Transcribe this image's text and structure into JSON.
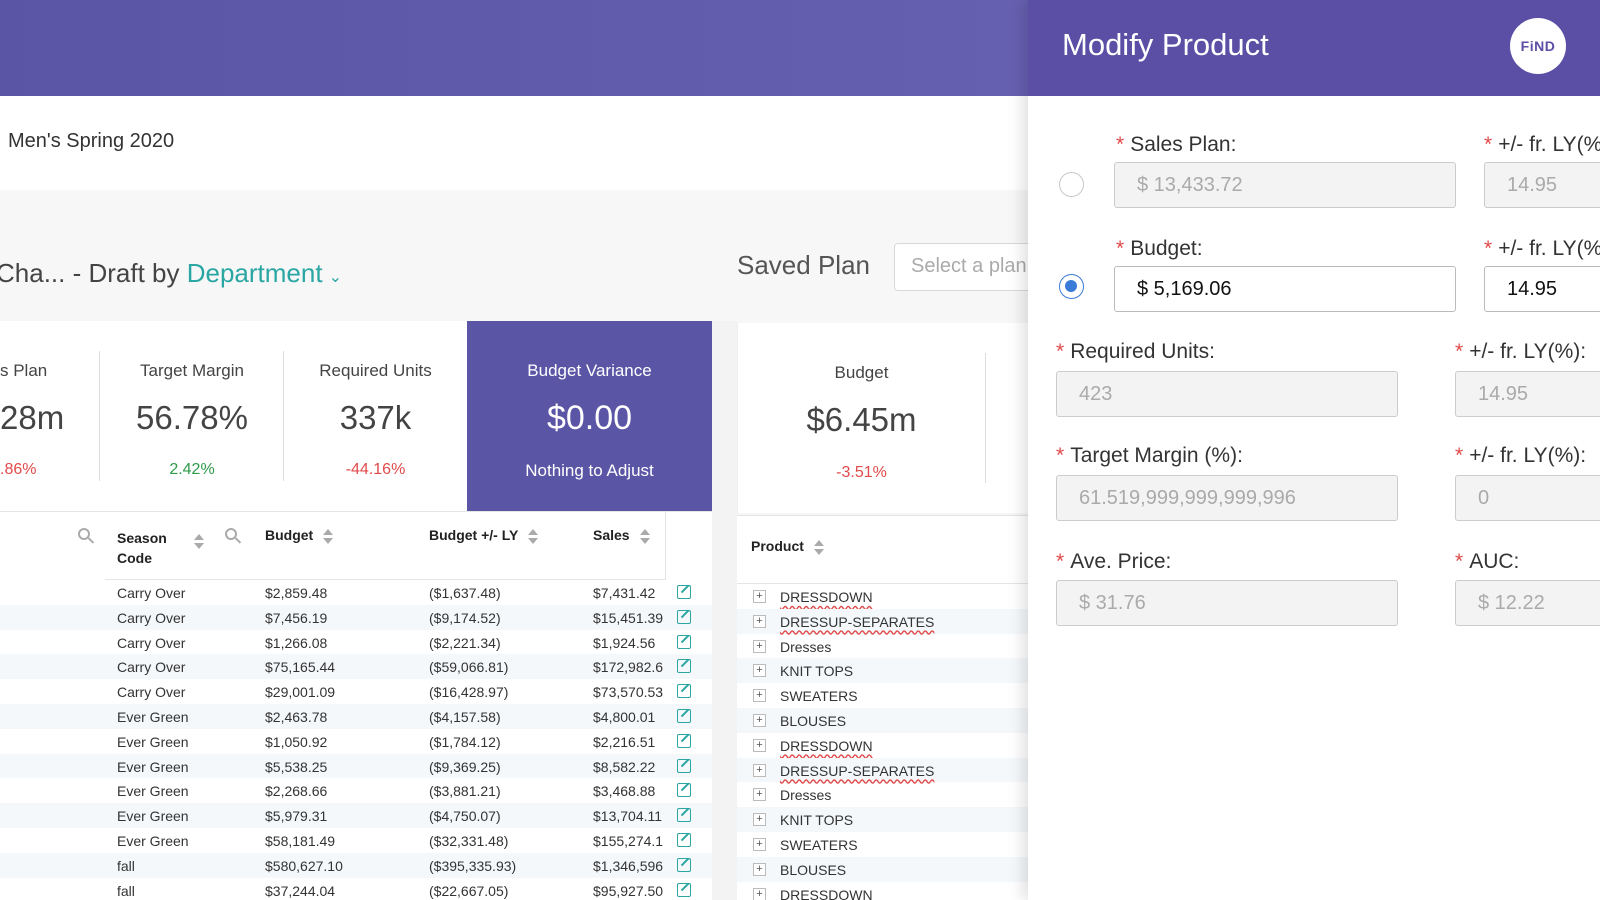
{
  "plan_name": "Men's Spring 2020",
  "draft": {
    "prefix": "Cha... - Draft by ",
    "group": "Department"
  },
  "saved_plan": {
    "label": "Saved Plan",
    "placeholder": "Select a plan"
  },
  "kpis": [
    {
      "label": "s Plan",
      "value": "28m",
      "change": ".86%"
    },
    {
      "label": "Target Margin",
      "value": "56.78%",
      "change": "2.42%"
    },
    {
      "label": "Required Units",
      "value": "337k",
      "change": "-44.16%"
    }
  ],
  "budget_variance": {
    "label": "Budget Variance",
    "value": "$0.00",
    "note": "Nothing to Adjust"
  },
  "kpi_budget": {
    "label": "Budget",
    "value": "$6.45m",
    "change": "-3.51%"
  },
  "left_table": {
    "headers": {
      "season": "Season Code",
      "budget": "Budget",
      "budget_ly": "Budget +/- LY",
      "sales": "Sales"
    },
    "rows": [
      {
        "season": "Carry Over",
        "budget": "$2,859.48",
        "budget_ly": "($1,637.48)",
        "sales": "$7,431.42"
      },
      {
        "season": "Carry Over",
        "budget": "$7,456.19",
        "budget_ly": "($9,174.52)",
        "sales": "$15,451.39"
      },
      {
        "season": "Carry Over",
        "budget": "$1,266.08",
        "budget_ly": "($2,221.34)",
        "sales": "$1,924.56"
      },
      {
        "season": "Carry Over",
        "budget": "$75,165.44",
        "budget_ly": "($59,066.81)",
        "sales": "$172,982.6"
      },
      {
        "season": "Carry Over",
        "budget": "$29,001.09",
        "budget_ly": "($16,428.97)",
        "sales": "$73,570.53"
      },
      {
        "season": "Ever Green",
        "budget": "$2,463.78",
        "budget_ly": "($4,157.58)",
        "sales": "$4,800.01"
      },
      {
        "season": "Ever Green",
        "budget": "$1,050.92",
        "budget_ly": "($1,784.12)",
        "sales": "$2,216.51"
      },
      {
        "season": "Ever Green",
        "budget": "$5,538.25",
        "budget_ly": "($9,369.25)",
        "sales": "$8,582.22"
      },
      {
        "season": "Ever Green",
        "budget": "$2,268.66",
        "budget_ly": "($3,881.21)",
        "sales": "$3,468.88"
      },
      {
        "season": "Ever Green",
        "budget": "$5,979.31",
        "budget_ly": "($4,750.07)",
        "sales": "$13,704.11"
      },
      {
        "season": "Ever Green",
        "budget": "$58,181.49",
        "budget_ly": "($32,331.48)",
        "sales": "$155,274.1"
      },
      {
        "season": "fall",
        "budget": "$580,627.10",
        "budget_ly": "($395,335.93)",
        "sales": "$1,346,596"
      },
      {
        "season": "fall",
        "budget": "$37,244.04",
        "budget_ly": "($22,667.05)",
        "sales": "$95,927.50"
      }
    ]
  },
  "product_table": {
    "header": "Product",
    "rows": [
      "DRESSDOWN",
      "DRESSUP-SEPARATES",
      "Dresses",
      "KNIT TOPS",
      "SWEATERS",
      "BLOUSES",
      "DRESSDOWN",
      "DRESSUP-SEPARATES",
      "Dresses",
      "KNIT TOPS",
      "SWEATERS",
      "BLOUSES",
      "DRESSDOWN"
    ]
  },
  "modal": {
    "title": "Modify Product",
    "logo": "FiND",
    "fields": {
      "sales_plan": {
        "label": "Sales Plan",
        "value": "$ 13,433.72"
      },
      "sales_plan_ly": {
        "label": "+/- fr. LY(%)",
        "value": "14.95"
      },
      "budget": {
        "label": "Budget",
        "value": "$ 5,169.06"
      },
      "budget_ly": {
        "label": "+/- fr. LY(%)",
        "value": "14.95"
      },
      "required_units": {
        "label": "Required Units",
        "value": "423"
      },
      "units_ly": {
        "label": "+/- fr. LY(%)",
        "value": "14.95"
      },
      "target_margin": {
        "label": "Target Margin (%)",
        "value": "61.519,999,999,999,996"
      },
      "margin_ly": {
        "label": "+/- fr. LY(%)",
        "value": "0"
      },
      "ave_price": {
        "label": "Ave. Price",
        "value": "$ 31.76"
      },
      "auc": {
        "label": "AUC",
        "value": "$ 12.22"
      }
    }
  },
  "colors": {
    "header": "#5b55a6",
    "accent": "#2aa6a3",
    "negative": "#e04a4a",
    "positive": "#2e9b48",
    "radio": "#3b7bd8"
  }
}
